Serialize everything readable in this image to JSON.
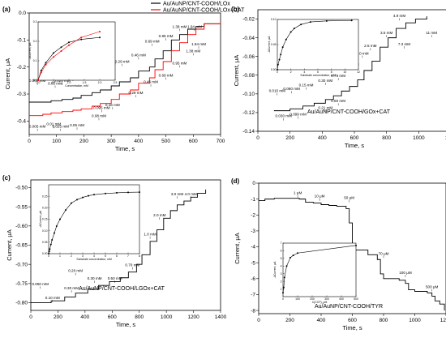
{
  "chart_data": [
    {
      "id": "a",
      "panel_label": "(a)",
      "type": "line",
      "xlabel": "Time, s",
      "ylabel": "Current, μA",
      "xlim": [
        0,
        700
      ],
      "ylim": [
        -0.45,
        0.0
      ],
      "xticks": [
        "0",
        "100",
        "200",
        "300",
        "400",
        "500",
        "600",
        "700"
      ],
      "yticks": [
        "0.0",
        "-0.1",
        "-0.2",
        "-0.3",
        "-0.4"
      ],
      "legend": {
        "placement": "top-right",
        "entries": [
          "Au/AuNP/CNT-COOH/LOx",
          "Au/AuNP/CNT-COOH/LOx+CAT"
        ]
      },
      "series": [
        {
          "name": "Au/AuNP/CNT-COOH/LOx",
          "color": "#000000",
          "x": [
            0,
            50,
            80,
            120,
            160,
            190,
            230,
            260,
            300,
            330,
            370,
            400,
            440,
            460,
            490,
            520,
            550,
            580,
            610,
            640,
            700
          ],
          "y": [
            -0.33,
            -0.33,
            -0.325,
            -0.32,
            -0.315,
            -0.305,
            -0.295,
            -0.285,
            -0.27,
            -0.255,
            -0.24,
            -0.215,
            -0.2,
            -0.17,
            -0.14,
            -0.1,
            -0.08,
            -0.06,
            -0.05,
            -0.04,
            -0.035
          ]
        },
        {
          "name": "Au/AuNP/CNT-COOH/LOx+CAT",
          "color": "#ff0000",
          "x": [
            0,
            50,
            80,
            120,
            160,
            190,
            230,
            260,
            300,
            330,
            370,
            400,
            440,
            460,
            490,
            520,
            550,
            580,
            610,
            640,
            700
          ],
          "y": [
            -0.38,
            -0.375,
            -0.37,
            -0.365,
            -0.36,
            -0.355,
            -0.345,
            -0.335,
            -0.32,
            -0.3,
            -0.285,
            -0.26,
            -0.24,
            -0.21,
            -0.18,
            -0.14,
            -0.11,
            -0.08,
            -0.06,
            -0.04,
            -0.035
          ]
        }
      ],
      "annotations": [
        {
          "text": "0.005 mM",
          "x": 30,
          "y": -0.255
        },
        {
          "text": "0.01 mM",
          "x": 95,
          "y": -0.265
        },
        {
          "text": "0.025 mM",
          "x": 120,
          "y": -0.255
        },
        {
          "text": "0.05 mM",
          "x": 160,
          "y": -0.24
        },
        {
          "text": "0.08 mM",
          "x": 205,
          "y": -0.22
        },
        {
          "text": "0.095 mM",
          "x": 230,
          "y": -0.205
        },
        {
          "text": "0.16 mM",
          "x": 290,
          "y": -0.19
        },
        {
          "text": "0.29 mM",
          "x": 340,
          "y": -0.185
        },
        {
          "text": "0.46 mM",
          "x": 400,
          "y": -0.16
        },
        {
          "text": "0.69 mM",
          "x": 450,
          "y": -0.11
        },
        {
          "text": "0.95 mM",
          "x": 500,
          "y": -0.09
        },
        {
          "text": "1.38 mM",
          "x": 550,
          "y": -0.055
        },
        {
          "text": "1.94 mM",
          "x": 605,
          "y": -0.055
        },
        {
          "text": "0.005 mM",
          "x": 30,
          "y": -0.425
        },
        {
          "text": "0.01 mM",
          "x": 90,
          "y": -0.415
        },
        {
          "text": "0.025 mM",
          "x": 115,
          "y": -0.425
        },
        {
          "text": "0.05 mM",
          "x": 175,
          "y": -0.42
        },
        {
          "text": "0.08 mM",
          "x": 255,
          "y": -0.385
        },
        {
          "text": "0.095 mM",
          "x": 265,
          "y": -0.355
        },
        {
          "text": "0.16 mM",
          "x": 305,
          "y": -0.345
        },
        {
          "text": "0.29 mM",
          "x": 390,
          "y": -0.3
        },
        {
          "text": "0.46 mM",
          "x": 445,
          "y": -0.26
        },
        {
          "text": "0.69 mM",
          "x": 500,
          "y": -0.235
        },
        {
          "text": "0.95 mM",
          "x": 550,
          "y": -0.19
        },
        {
          "text": "1.38 mM",
          "x": 600,
          "y": -0.145
        },
        {
          "text": "1.94 mM",
          "x": 620,
          "y": -0.12
        }
      ],
      "inset": {
        "xlabel": "Concentration, mM",
        "ylabel": "-ΔCurrent, μA",
        "xlim": [
          0,
          2.5
        ],
        "ylim": [
          0,
          0.3
        ],
        "xticks": [
          "0.0",
          "0.5",
          "1.0",
          "1.5",
          "2.0",
          "2.5"
        ],
        "yticks": [
          "0.0",
          "0.1",
          "0.2",
          "0.3"
        ],
        "series": [
          {
            "color": "#000000",
            "x": [
              0,
              0.1,
              0.25,
              0.5,
              0.75,
              1.0,
              1.4,
              2.0
            ],
            "y": [
              0,
              0.05,
              0.09,
              0.14,
              0.17,
              0.195,
              0.21,
              0.22
            ]
          },
          {
            "color": "#ff0000",
            "x": [
              0,
              0.1,
              0.25,
              0.5,
              0.75,
              1.0,
              1.4,
              2.0
            ],
            "y": [
              0,
              0.04,
              0.08,
              0.12,
              0.15,
              0.18,
              0.22,
              0.25
            ]
          }
        ]
      }
    },
    {
      "id": "b",
      "panel_label": "(b)",
      "type": "line",
      "xlabel": "Time, s",
      "ylabel": "Current, μA",
      "caption": "Au/AuNP/CNT-COOH/GOx+CAT",
      "xlim": [
        0,
        1200
      ],
      "ylim": [
        -0.14,
        -0.01
      ],
      "xticks": [
        "0",
        "200",
        "400",
        "600",
        "800",
        "1000",
        "1200"
      ],
      "yticks": [
        "-0.02",
        "-0.04",
        "-0.06",
        "-0.08",
        "-0.10",
        "-0.12",
        "-0.14"
      ],
      "series": [
        {
          "color": "#000000",
          "x": [
            100,
            200,
            280,
            350,
            420,
            470,
            520,
            570,
            620,
            660,
            710,
            760,
            810,
            860,
            920,
            980,
            1050
          ],
          "y": [
            -0.118,
            -0.116,
            -0.113,
            -0.11,
            -0.106,
            -0.102,
            -0.097,
            -0.092,
            -0.085,
            -0.075,
            -0.065,
            -0.05,
            -0.04,
            -0.03,
            -0.024,
            -0.02,
            -0.017
          ]
        }
      ],
      "annotations": [
        {
          "text": "0.010 mM",
          "x": 120,
          "y": -0.098
        },
        {
          "text": "0.060 mM",
          "x": 210,
          "y": -0.096
        },
        {
          "text": "0.15 mM",
          "x": 300,
          "y": -0.092
        },
        {
          "text": "0.30 mM",
          "x": 420,
          "y": -0.087
        },
        {
          "text": "0.79 mM",
          "x": 500,
          "y": -0.082
        },
        {
          "text": "1.3 mM",
          "x": 590,
          "y": -0.07
        },
        {
          "text": "2.0 mM",
          "x": 650,
          "y": -0.058
        },
        {
          "text": "2.5 mM",
          "x": 700,
          "y": -0.05
        },
        {
          "text": "3.5 mM",
          "x": 800,
          "y": -0.036
        },
        {
          "text": "4.9 mM",
          "x": 880,
          "y": -0.018
        },
        {
          "text": "7.3 mM",
          "x": 910,
          "y": -0.048
        },
        {
          "text": "11 mM",
          "x": 1080,
          "y": -0.036
        },
        {
          "text": "0.030 mM",
          "x": 160,
          "y": -0.125
        },
        {
          "text": "0.099 mM",
          "x": 250,
          "y": -0.123
        },
        {
          "text": "0.21 mM",
          "x": 420,
          "y": -0.116
        },
        {
          "text": "0.50 mM",
          "x": 500,
          "y": -0.109
        }
      ],
      "inset": {
        "xlabel": "Substrate concentration, mM",
        "ylabel": "-ΔCurrent, μA",
        "xlim": [
          0,
          12
        ],
        "ylim": [
          0,
          0.1
        ],
        "xticks": [
          "0",
          "2",
          "4",
          "6",
          "8",
          "10",
          "12"
        ],
        "yticks": [
          "0.00",
          "0.05",
          "0.10"
        ],
        "series": [
          {
            "color": "#000000",
            "x": [
              0,
              0.1,
              0.3,
              0.5,
              0.8,
              1.3,
              2.0,
              2.5,
              3.5,
              4.9,
              7.3,
              11
            ],
            "y": [
              0,
              0.01,
              0.02,
              0.03,
              0.045,
              0.06,
              0.075,
              0.082,
              0.09,
              0.095,
              0.097,
              0.098
            ]
          }
        ]
      }
    },
    {
      "id": "c",
      "panel_label": "(c)",
      "type": "line",
      "xlabel": "Time, s",
      "ylabel": "Current, μA",
      "caption": "Au/AuNP/CNT-COOH/LGOx+CAT",
      "xlim": [
        0,
        1400
      ],
      "ylim": [
        -0.82,
        -0.48
      ],
      "xticks": [
        "0",
        "200",
        "400",
        "600",
        "800",
        "1000",
        "1200",
        "1400"
      ],
      "yticks": [
        "-0.50",
        "-0.55",
        "-0.60",
        "-0.65",
        "-0.70",
        "-0.75",
        "-0.80"
      ],
      "series": [
        {
          "color": "#000000",
          "x": [
            0,
            150,
            250,
            330,
            420,
            500,
            580,
            660,
            720,
            780,
            820,
            880,
            930,
            980,
            1030,
            1080,
            1130,
            1180,
            1230,
            1290
          ],
          "y": [
            -0.8,
            -0.795,
            -0.785,
            -0.775,
            -0.765,
            -0.755,
            -0.745,
            -0.735,
            -0.72,
            -0.7,
            -0.675,
            -0.64,
            -0.61,
            -0.58,
            -0.56,
            -0.545,
            -0.535,
            -0.525,
            -0.515,
            -0.505
          ]
        }
      ],
      "annotations": [
        {
          "text": "0.050 mM",
          "x": 70,
          "y": -0.755
        },
        {
          "text": "0.10 mM",
          "x": 160,
          "y": -0.79
        },
        {
          "text": "0.20 mM",
          "x": 330,
          "y": -0.72
        },
        {
          "text": "0.30 mM",
          "x": 300,
          "y": -0.765
        },
        {
          "text": "0.30 mM",
          "x": 470,
          "y": -0.74
        },
        {
          "text": "0.50 mM",
          "x": 620,
          "y": -0.74
        },
        {
          "text": "0.70 mM",
          "x": 750,
          "y": -0.705
        },
        {
          "text": "1.0 mM",
          "x": 880,
          "y": -0.625
        },
        {
          "text": "2.0 mM",
          "x": 950,
          "y": -0.575
        },
        {
          "text": "3.0 mM",
          "x": 1080,
          "y": -0.52
        },
        {
          "text": "4.0 mM",
          "x": 1180,
          "y": -0.52
        }
      ],
      "inset": {
        "xlabel": "Substrate concentration, mM",
        "ylabel": "-ΔCurrent, μA",
        "xlim": [
          0,
          8
        ],
        "ylim": [
          0,
          0.3
        ],
        "xticks": [
          "0",
          "1",
          "2",
          "3",
          "4",
          "5",
          "6",
          "7",
          "8"
        ],
        "yticks": [
          "0.00",
          "0.05",
          "0.10",
          "0.15",
          "0.20",
          "0.25"
        ],
        "series": [
          {
            "color": "#000000",
            "x": [
              0,
              0.05,
              0.1,
              0.2,
              0.3,
              0.5,
              0.7,
              1.0,
              1.5,
              2.0,
              2.5,
              3.0,
              3.5,
              4.0,
              5.0,
              6.0,
              7.0,
              8.0
            ],
            "y": [
              0,
              0.01,
              0.02,
              0.04,
              0.06,
              0.09,
              0.12,
              0.15,
              0.19,
              0.22,
              0.235,
              0.245,
              0.252,
              0.257,
              0.262,
              0.265,
              0.267,
              0.268
            ]
          }
        ]
      }
    },
    {
      "id": "d",
      "panel_label": "(d)",
      "type": "line",
      "xlabel": "Time, s",
      "ylabel": "Current, μA",
      "caption": "Au/AuNP/CNT-COOH/TYR",
      "xlim": [
        0,
        1200
      ],
      "ylim": [
        -8.2,
        0
      ],
      "xticks": [
        "0",
        "200",
        "400",
        "600",
        "800",
        "1000",
        "1200"
      ],
      "yticks": [
        "0",
        "-1",
        "-2",
        "-3",
        "-4",
        "-5",
        "-6",
        "-7",
        "-8"
      ],
      "series": [
        {
          "color": "#000000",
          "x": [
            0,
            40,
            100,
            200,
            260,
            300,
            350,
            400,
            450,
            500,
            560,
            580,
            600,
            620,
            700,
            760,
            780,
            800,
            900,
            940,
            960,
            1000,
            1080,
            1110,
            1130,
            1160,
            1190
          ],
          "y": [
            -1.1,
            -1.0,
            -0.95,
            -0.95,
            -1.0,
            -1.2,
            -1.25,
            -1.35,
            -1.4,
            -1.45,
            -1.6,
            -2.5,
            -3.8,
            -4.2,
            -4.5,
            -4.8,
            -5.7,
            -6.0,
            -6.1,
            -6.3,
            -6.7,
            -6.8,
            -6.9,
            -7.1,
            -7.4,
            -7.6,
            -8.0
          ]
        }
      ],
      "annotations": [
        {
          "text": "1 μM",
          "x": 250,
          "y": -0.7
        },
        {
          "text": "10 μM",
          "x": 390,
          "y": -0.9
        },
        {
          "text": "50 μM",
          "x": 580,
          "y": -1.0
        },
        {
          "text": "70 μM",
          "x": 800,
          "y": -4.5
        },
        {
          "text": "100 μM",
          "x": 940,
          "y": -5.7
        },
        {
          "text": "500 μM",
          "x": 1110,
          "y": -6.6
        }
      ],
      "inset": {
        "xlabel": "C(CCP), μM",
        "ylabel": "-ΔCurrent, μA",
        "xlim": [
          0,
          500
        ],
        "ylim": [
          0,
          7
        ],
        "xticks": [
          "0",
          "100",
          "200",
          "300",
          "400",
          "500"
        ],
        "yticks": [
          "1",
          "2",
          "3",
          "4",
          "5",
          "6",
          "7"
        ],
        "series": [
          {
            "color": "#000000",
            "x": [
              0,
              5,
              10,
              25,
              50,
              70,
              100,
              500
            ],
            "y": [
              0.5,
              1.2,
              2.5,
              4.0,
              5.1,
              5.4,
              5.7,
              6.7
            ]
          }
        ]
      }
    }
  ]
}
